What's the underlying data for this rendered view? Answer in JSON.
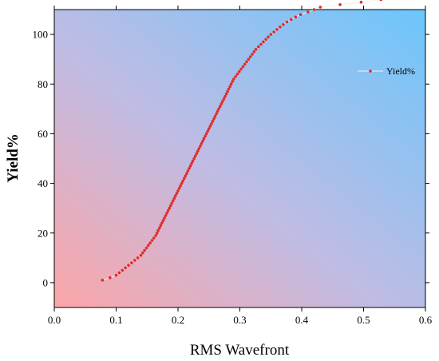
{
  "chart_data": {
    "type": "scatter",
    "xlabel": "RMS Wavefront",
    "ylabel": "Yield%",
    "xlim": [
      0.0,
      0.6
    ],
    "ylim": [
      -10,
      110
    ],
    "x_ticks": [
      0.0,
      0.1,
      0.2,
      0.3,
      0.4,
      0.5,
      0.6
    ],
    "x_tick_labels": [
      "0.0",
      "0.1",
      "0.2",
      "0.3",
      "0.4",
      "0.5",
      "0.6"
    ],
    "y_ticks": [
      0,
      20,
      40,
      60,
      80,
      100
    ],
    "y_tick_labels": [
      "0",
      "20",
      "40",
      "60",
      "80",
      "100"
    ],
    "grid": false,
    "legend_position": "top-right",
    "background": "gradient from pink (bottom-left) to light blue (top-right)",
    "colors": {
      "gradient_start": "#fca5a7",
      "gradient_mid": "#bfbce4",
      "gradient_end": "#6cc6fb",
      "marker": "#e02b2b",
      "line": "#f2f2f2"
    },
    "series": [
      {
        "name": "Yield%",
        "x": [
          0.078,
          0.09,
          0.1,
          0.105,
          0.11,
          0.115,
          0.12,
          0.125,
          0.13,
          0.135,
          0.14,
          0.143,
          0.146,
          0.149,
          0.152,
          0.155,
          0.158,
          0.161,
          0.164,
          0.166,
          0.168,
          0.17,
          0.172,
          0.174,
          0.176,
          0.178,
          0.18,
          0.182,
          0.184,
          0.186,
          0.188,
          0.19,
          0.192,
          0.194,
          0.196,
          0.198,
          0.2,
          0.202,
          0.204,
          0.206,
          0.208,
          0.21,
          0.212,
          0.214,
          0.216,
          0.218,
          0.22,
          0.222,
          0.224,
          0.226,
          0.228,
          0.23,
          0.232,
          0.234,
          0.236,
          0.238,
          0.24,
          0.242,
          0.244,
          0.246,
          0.248,
          0.25,
          0.252,
          0.254,
          0.256,
          0.258,
          0.26,
          0.262,
          0.264,
          0.266,
          0.268,
          0.27,
          0.272,
          0.274,
          0.276,
          0.278,
          0.28,
          0.282,
          0.284,
          0.286,
          0.288,
          0.29,
          0.293,
          0.296,
          0.299,
          0.302,
          0.305,
          0.308,
          0.311,
          0.314,
          0.317,
          0.32,
          0.323,
          0.326,
          0.33,
          0.334,
          0.338,
          0.342,
          0.346,
          0.35,
          0.355,
          0.36,
          0.365,
          0.37,
          0.376,
          0.383,
          0.39,
          0.398,
          0.41,
          0.42,
          0.43,
          0.462,
          0.496,
          0.528
        ],
        "y": [
          1,
          2,
          3,
          4,
          5,
          6,
          7,
          8,
          9,
          10,
          11,
          12,
          13,
          14,
          15,
          16,
          17,
          18,
          19,
          20,
          21,
          22,
          23,
          24,
          25,
          26,
          27,
          28,
          29,
          30,
          31,
          32,
          33,
          34,
          35,
          36,
          37,
          38,
          39,
          40,
          41,
          42,
          43,
          44,
          45,
          46,
          47,
          48,
          49,
          50,
          51,
          52,
          53,
          54,
          55,
          56,
          57,
          58,
          59,
          60,
          61,
          62,
          63,
          64,
          65,
          66,
          67,
          68,
          69,
          70,
          71,
          72,
          73,
          74,
          75,
          76,
          77,
          78,
          79,
          80,
          81,
          82,
          83,
          84,
          85,
          86,
          87,
          88,
          89,
          90,
          91,
          92,
          93,
          94,
          95,
          96,
          97,
          98,
          99,
          100,
          101,
          102,
          103,
          104,
          105,
          106,
          107,
          108,
          109,
          110,
          111,
          112,
          113,
          114
        ]
      }
    ]
  }
}
